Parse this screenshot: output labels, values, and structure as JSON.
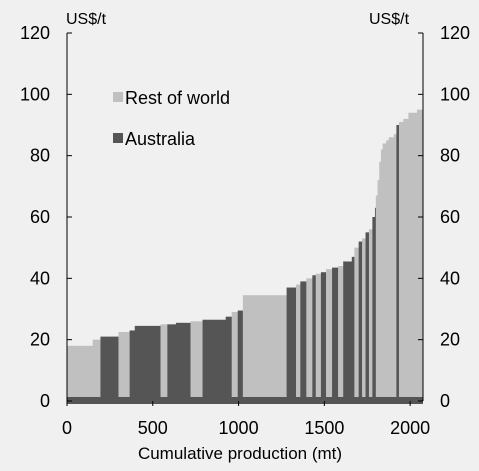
{
  "chart_data": {
    "type": "bar",
    "units_left": "US$/t",
    "units_right": "US$/t",
    "xlabel": "Cumulative production (mt)",
    "ylabel": "",
    "xlim": [
      0,
      2075
    ],
    "ylim": [
      0,
      120
    ],
    "xticks": [
      "0",
      "500",
      "1000",
      "1500",
      "2000"
    ],
    "yticks": [
      "0",
      "20",
      "40",
      "60",
      "80",
      "100",
      "120"
    ],
    "grid": false,
    "legend_position": "top-left",
    "colors": {
      "rest_of_world": "#c0c0c0",
      "australia": "#555555",
      "axis": "#555555",
      "background": "#f0f0f0"
    },
    "series": [
      {
        "name": "Rest of world",
        "color": "#c0c0c0"
      },
      {
        "name": "Australia",
        "color": "#555555"
      }
    ],
    "segments": [
      {
        "x0": 0,
        "x1": 150,
        "value": 18,
        "region": "rest"
      },
      {
        "x0": 150,
        "x1": 195,
        "value": 20,
        "region": "rest"
      },
      {
        "x0": 195,
        "x1": 300,
        "value": 21,
        "region": "aus"
      },
      {
        "x0": 300,
        "x1": 365,
        "value": 22.5,
        "region": "rest"
      },
      {
        "x0": 365,
        "x1": 395,
        "value": 23,
        "region": "aus"
      },
      {
        "x0": 395,
        "x1": 545,
        "value": 24.5,
        "region": "aus"
      },
      {
        "x0": 545,
        "x1": 585,
        "value": 25,
        "region": "rest"
      },
      {
        "x0": 585,
        "x1": 635,
        "value": 25,
        "region": "aus"
      },
      {
        "x0": 635,
        "x1": 720,
        "value": 25.5,
        "region": "aus"
      },
      {
        "x0": 720,
        "x1": 790,
        "value": 26,
        "region": "rest"
      },
      {
        "x0": 790,
        "x1": 925,
        "value": 26.5,
        "region": "aus"
      },
      {
        "x0": 925,
        "x1": 960,
        "value": 27.5,
        "region": "aus"
      },
      {
        "x0": 960,
        "x1": 995,
        "value": 29,
        "region": "rest"
      },
      {
        "x0": 995,
        "x1": 1025,
        "value": 29.5,
        "region": "aus"
      },
      {
        "x0": 1025,
        "x1": 1280,
        "value": 34.5,
        "region": "rest"
      },
      {
        "x0": 1280,
        "x1": 1335,
        "value": 37,
        "region": "aus"
      },
      {
        "x0": 1335,
        "x1": 1360,
        "value": 38,
        "region": "rest"
      },
      {
        "x0": 1360,
        "x1": 1395,
        "value": 39,
        "region": "aus"
      },
      {
        "x0": 1395,
        "x1": 1430,
        "value": 40,
        "region": "rest"
      },
      {
        "x0": 1430,
        "x1": 1450,
        "value": 41,
        "region": "aus"
      },
      {
        "x0": 1450,
        "x1": 1480,
        "value": 41.5,
        "region": "rest"
      },
      {
        "x0": 1480,
        "x1": 1510,
        "value": 42,
        "region": "aus"
      },
      {
        "x0": 1510,
        "x1": 1545,
        "value": 43,
        "region": "rest"
      },
      {
        "x0": 1545,
        "x1": 1580,
        "value": 43.5,
        "region": "aus"
      },
      {
        "x0": 1580,
        "x1": 1610,
        "value": 44,
        "region": "rest"
      },
      {
        "x0": 1610,
        "x1": 1660,
        "value": 45.5,
        "region": "aus"
      },
      {
        "x0": 1660,
        "x1": 1675,
        "value": 47,
        "region": "aus"
      },
      {
        "x0": 1675,
        "x1": 1700,
        "value": 50,
        "region": "rest"
      },
      {
        "x0": 1700,
        "x1": 1720,
        "value": 52,
        "region": "aus"
      },
      {
        "x0": 1720,
        "x1": 1740,
        "value": 53,
        "region": "rest"
      },
      {
        "x0": 1740,
        "x1": 1760,
        "value": 55,
        "region": "aus"
      },
      {
        "x0": 1760,
        "x1": 1780,
        "value": 56,
        "region": "rest"
      },
      {
        "x0": 1780,
        "x1": 1795,
        "value": 60,
        "region": "aus"
      },
      {
        "x0": 1795,
        "x1": 1800,
        "value": 63,
        "region": "aus"
      },
      {
        "x0": 1800,
        "x1": 1810,
        "value": 67,
        "region": "rest"
      },
      {
        "x0": 1810,
        "x1": 1820,
        "value": 72,
        "region": "rest"
      },
      {
        "x0": 1820,
        "x1": 1830,
        "value": 78,
        "region": "rest"
      },
      {
        "x0": 1830,
        "x1": 1840,
        "value": 82,
        "region": "rest"
      },
      {
        "x0": 1840,
        "x1": 1860,
        "value": 84,
        "region": "rest"
      },
      {
        "x0": 1860,
        "x1": 1875,
        "value": 85,
        "region": "rest"
      },
      {
        "x0": 1875,
        "x1": 1905,
        "value": 86,
        "region": "rest"
      },
      {
        "x0": 1905,
        "x1": 1920,
        "value": 87,
        "region": "rest"
      },
      {
        "x0": 1920,
        "x1": 1935,
        "value": 90,
        "region": "aus"
      },
      {
        "x0": 1935,
        "x1": 1960,
        "value": 91,
        "region": "rest"
      },
      {
        "x0": 1960,
        "x1": 1990,
        "value": 92,
        "region": "rest"
      },
      {
        "x0": 1990,
        "x1": 2040,
        "value": 94,
        "region": "rest"
      },
      {
        "x0": 2040,
        "x1": 2075,
        "value": 95,
        "region": "rest"
      }
    ]
  }
}
